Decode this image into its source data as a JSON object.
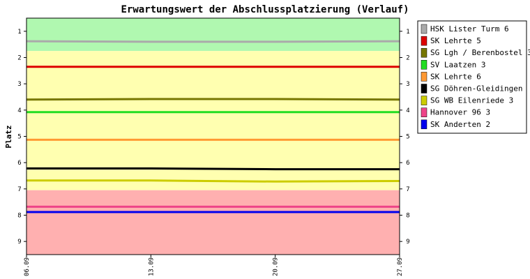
{
  "chart_data": {
    "type": "line",
    "title": "Erwartungswert der Abschlussplatzierung (Verlauf)",
    "ylabel": "Platz",
    "xlabel": "",
    "x": [
      "06.09",
      "13.09",
      "20.09",
      "27.09"
    ],
    "ylim": [
      0.5,
      9.5
    ],
    "y_reversed": true,
    "y_ticks": [
      1,
      2,
      3,
      4,
      5,
      6,
      7,
      8,
      9
    ],
    "zones": [
      {
        "from": 0.5,
        "to": 1.75,
        "color": "#b0f8b0"
      },
      {
        "from": 1.75,
        "to": 7.05,
        "color": "#ffffb0"
      },
      {
        "from": 7.05,
        "to": 9.5,
        "color": "#ffb0b0"
      }
    ],
    "legend_position": "right",
    "grid": false,
    "series": [
      {
        "name": "HSK Lister Turm 6",
        "color": "#aaaaaa",
        "values": [
          1.38,
          1.4,
          1.4,
          1.38
        ]
      },
      {
        "name": "SK Lehrte 5",
        "color": "#dd0000",
        "values": [
          2.35,
          2.35,
          2.35,
          2.35
        ]
      },
      {
        "name": "SG Lgh / Berenbostel 3",
        "color": "#777700",
        "values": [
          3.6,
          3.58,
          3.58,
          3.6
        ]
      },
      {
        "name": "SV Laatzen 3",
        "color": "#22dd22",
        "values": [
          4.08,
          4.08,
          4.08,
          4.08
        ]
      },
      {
        "name": "SK Lehrte 6",
        "color": "#ff9933",
        "values": [
          5.13,
          5.13,
          5.13,
          5.13
        ]
      },
      {
        "name": "SG Döhren-Gleidingen",
        "color": "#000000",
        "values": [
          6.22,
          6.22,
          6.25,
          6.25
        ]
      },
      {
        "name": "SG WB Eilenriede 3",
        "color": "#cccc00",
        "values": [
          6.68,
          6.68,
          6.72,
          6.7
        ]
      },
      {
        "name": "Hannover 96 3",
        "color": "#ee4488",
        "values": [
          7.68,
          7.68,
          7.68,
          7.68
        ]
      },
      {
        "name": "SK Anderten 2",
        "color": "#0000ee",
        "values": [
          7.88,
          7.88,
          7.88,
          7.88
        ]
      }
    ]
  }
}
